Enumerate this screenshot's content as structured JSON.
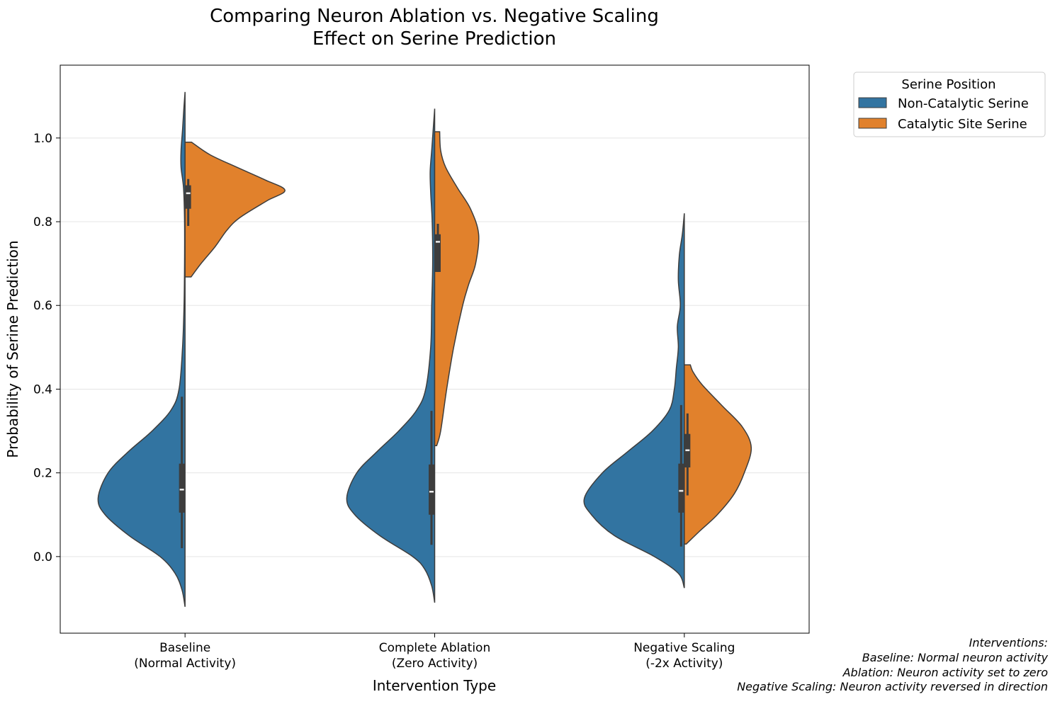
{
  "chart_data": {
    "type": "violin",
    "title": [
      "Comparing Neuron Ablation vs. Negative Scaling",
      "Effect on Serine Prediction"
    ],
    "xlabel": "Intervention Type",
    "ylabel": "Probability of Serine Prediction",
    "ylim": [
      -0.183,
      1.174
    ],
    "yticks": [
      0.0,
      0.2,
      0.4,
      0.6,
      0.8,
      1.0
    ],
    "ytick_labels": [
      "0.0",
      "0.2",
      "0.4",
      "0.6",
      "0.8",
      "1.0"
    ],
    "grid": "horizontal",
    "categories": [
      [
        "Baseline",
        "(Normal Activity)"
      ],
      [
        "Complete Ablation",
        "(Zero Activity)"
      ],
      [
        "Negative Scaling",
        "(-2x Activity)"
      ]
    ],
    "legend": {
      "title": "Serine Position",
      "placement": "outside-top-right",
      "entries": [
        "Non-Catalytic Serine",
        "Catalytic Site Serine"
      ]
    },
    "colors": {
      "Non-Catalytic Serine": "#3274a1",
      "Catalytic Site Serine": "#e1812c",
      "box": "#3d3d3d"
    },
    "series": [
      {
        "name": "Non-Catalytic Serine",
        "side": "left",
        "violins": [
          {
            "density": [
              [
                -0.12,
                0
              ],
              [
                -0.08,
                0.03
              ],
              [
                -0.04,
                0.1
              ],
              [
                0,
                0.25
              ],
              [
                0.05,
                0.56
              ],
              [
                0.1,
                0.8
              ],
              [
                0.14,
                0.87
              ],
              [
                0.2,
                0.77
              ],
              [
                0.25,
                0.57
              ],
              [
                0.3,
                0.33
              ],
              [
                0.35,
                0.14
              ],
              [
                0.4,
                0.06
              ],
              [
                0.5,
                0.025
              ],
              [
                0.6,
                0.01
              ],
              [
                0.7,
                0.005
              ],
              [
                0.8,
                0.005
              ],
              [
                0.88,
                0.015
              ],
              [
                0.93,
                0.04
              ],
              [
                0.97,
                0.04
              ],
              [
                1.02,
                0.025
              ],
              [
                1.07,
                0.012
              ],
              [
                1.11,
                0
              ]
            ],
            "box": {
              "whisker_low": 0.02,
              "q1": 0.105,
              "median": 0.16,
              "q3": 0.222,
              "whisker_high": 0.382
            }
          },
          {
            "density": [
              [
                -0.11,
                0
              ],
              [
                -0.07,
                0.03
              ],
              [
                -0.03,
                0.1
              ],
              [
                0,
                0.22
              ],
              [
                0.05,
                0.55
              ],
              [
                0.1,
                0.8
              ],
              [
                0.14,
                0.88
              ],
              [
                0.2,
                0.78
              ],
              [
                0.25,
                0.58
              ],
              [
                0.3,
                0.36
              ],
              [
                0.35,
                0.18
              ],
              [
                0.4,
                0.09
              ],
              [
                0.5,
                0.04
              ],
              [
                0.6,
                0.03
              ],
              [
                0.7,
                0.02
              ],
              [
                0.8,
                0.025
              ],
              [
                0.87,
                0.04
              ],
              [
                0.92,
                0.045
              ],
              [
                0.97,
                0.03
              ],
              [
                1.02,
                0.015
              ],
              [
                1.07,
                0
              ]
            ],
            "box": {
              "whisker_low": 0.028,
              "q1": 0.1,
              "median": 0.155,
              "q3": 0.22,
              "whisker_high": 0.348
            }
          },
          {
            "density": [
              [
                -0.075,
                0
              ],
              [
                -0.04,
                0.06
              ],
              [
                0,
                0.3
              ],
              [
                0.05,
                0.7
              ],
              [
                0.1,
                0.93
              ],
              [
                0.14,
                1.0
              ],
              [
                0.2,
                0.82
              ],
              [
                0.25,
                0.57
              ],
              [
                0.3,
                0.32
              ],
              [
                0.35,
                0.15
              ],
              [
                0.4,
                0.1
              ],
              [
                0.45,
                0.08
              ],
              [
                0.5,
                0.06
              ],
              [
                0.55,
                0.07
              ],
              [
                0.6,
                0.04
              ],
              [
                0.66,
                0.06
              ],
              [
                0.72,
                0.05
              ],
              [
                0.77,
                0.02
              ],
              [
                0.82,
                0
              ]
            ],
            "box": {
              "whisker_low": 0.024,
              "q1": 0.105,
              "median": 0.157,
              "q3": 0.222,
              "whisker_high": 0.362
            }
          }
        ]
      },
      {
        "name": "Catalytic Site Serine",
        "side": "right",
        "violins": [
          {
            "density": [
              [
                0.668,
                0.06
              ],
              [
                0.7,
                0.16
              ],
              [
                0.74,
                0.3
              ],
              [
                0.78,
                0.42
              ],
              [
                0.81,
                0.55
              ],
              [
                0.85,
                0.82
              ],
              [
                0.875,
                1.0
              ],
              [
                0.9,
                0.8
              ],
              [
                0.93,
                0.52
              ],
              [
                0.96,
                0.25
              ],
              [
                0.99,
                0.065
              ]
            ],
            "box": {
              "whisker_low": 0.79,
              "q1": 0.831,
              "median": 0.868,
              "q3": 0.887,
              "whisker_high": 0.902
            }
          },
          {
            "density": [
              [
                0.265,
                0.02
              ],
              [
                0.3,
                0.06
              ],
              [
                0.4,
                0.12
              ],
              [
                0.5,
                0.19
              ],
              [
                0.6,
                0.28
              ],
              [
                0.65,
                0.34
              ],
              [
                0.7,
                0.41
              ],
              [
                0.77,
                0.44
              ],
              [
                0.83,
                0.36
              ],
              [
                0.88,
                0.23
              ],
              [
                0.93,
                0.11
              ],
              [
                0.97,
                0.06
              ],
              [
                1.015,
                0.05
              ]
            ],
            "box": {
              "whisker_low": 0.68,
              "q1": 0.68,
              "median": 0.752,
              "q3": 0.77,
              "whisker_high": 0.795
            }
          },
          {
            "density": [
              [
                0.03,
                0.02
              ],
              [
                0.06,
                0.15
              ],
              [
                0.1,
                0.33
              ],
              [
                0.15,
                0.5
              ],
              [
                0.2,
                0.6
              ],
              [
                0.26,
                0.67
              ],
              [
                0.31,
                0.58
              ],
              [
                0.36,
                0.38
              ],
              [
                0.41,
                0.18
              ],
              [
                0.44,
                0.09
              ],
              [
                0.458,
                0.06
              ]
            ],
            "box": {
              "whisker_low": 0.146,
              "q1": 0.213,
              "median": 0.254,
              "q3": 0.293,
              "whisker_high": 0.342
            }
          }
        ]
      }
    ],
    "annotation": [
      "Interventions:",
      "Baseline: Normal neuron activity",
      "Ablation: Neuron activity set to zero",
      "Negative Scaling: Neuron activity reversed in direction"
    ]
  }
}
